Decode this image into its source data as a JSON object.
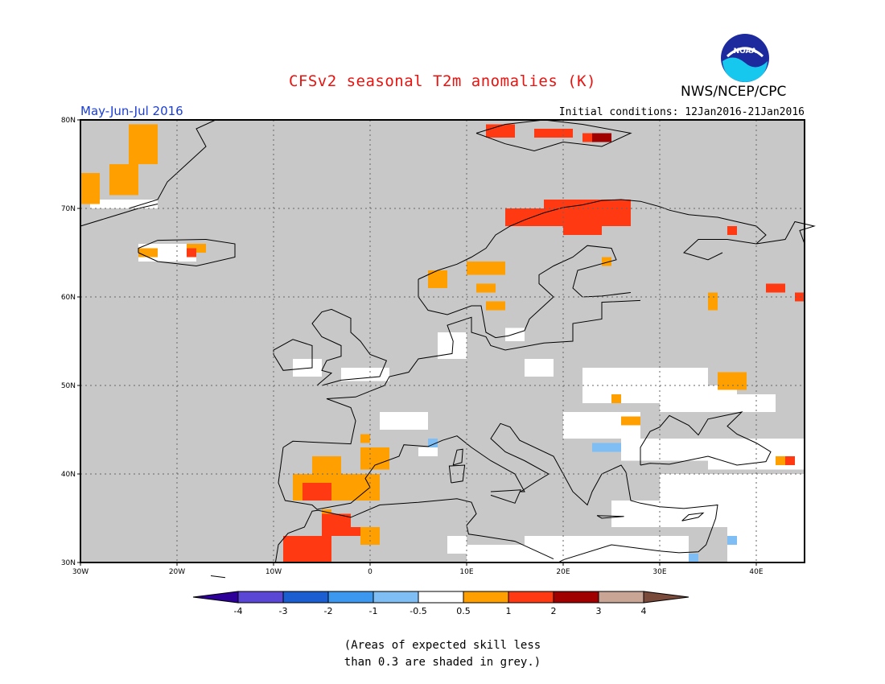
{
  "header": {
    "title": "CFSv2 seasonal T2m anomalies (K)",
    "agency": "NWS/NCEP/CPC",
    "logo_text": "NOAA",
    "period": "May-Jun-Jul 2016",
    "init_conditions": "Initial conditions: 12Jan2016-21Jan2016"
  },
  "map": {
    "lon_range": [
      -30,
      45
    ],
    "lat_range": [
      30,
      80
    ],
    "lon_ticks": [
      "30W",
      "20W",
      "10W",
      "0",
      "10E",
      "20E",
      "30E",
      "40E"
    ],
    "lat_ticks": [
      "30N",
      "40N",
      "50N",
      "60N",
      "70N",
      "80N"
    ],
    "grid": "dotted",
    "colors": {
      "ocean_grey": "#c8c8c8",
      "low_skill": "#c8c8c8",
      "neutral": "#ffffff",
      "anom_0_5_to_1": "#ffa000",
      "anom_1_to_2": "#ff3a12",
      "anom_2_to_3": "#a00000",
      "anom_neg_1_to_neg_0_5": "#7fbdf5"
    }
  },
  "colorbar": {
    "labels": [
      "-4",
      "-3",
      "-2",
      "-1",
      "-0.5",
      "0.5",
      "1",
      "2",
      "3",
      "4"
    ],
    "colors": [
      "#2c0099",
      "#5a47d6",
      "#1a5ed1",
      "#3c97ee",
      "#7fbdf5",
      "#ffffff",
      "#ffa000",
      "#ff3a12",
      "#a00000",
      "#c9a596",
      "#7a4a3a"
    ]
  },
  "note": {
    "line1": "(Areas of expected skill less",
    "line2": "than 0.3 are shaded in grey.)"
  }
}
